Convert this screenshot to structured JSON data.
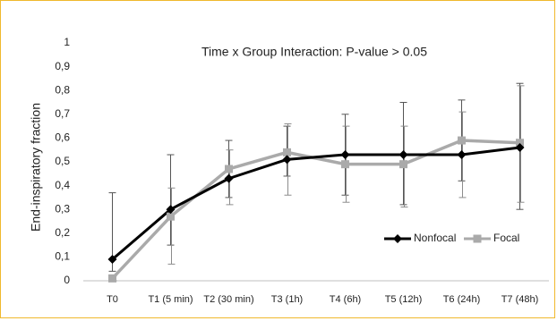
{
  "chart_data": {
    "type": "line",
    "title": "",
    "annotation": "Time x Group Interaction: P-value > 0.05",
    "xlabel": "",
    "ylabel": "End-inspiratory fraction",
    "x": [
      "T0",
      "T1 (5 min)",
      "T2 (30 min)",
      "T3 (1h)",
      "T4 (6h)",
      "T5 (12h)",
      "T6 (24h)",
      "T7 (48h)"
    ],
    "y_ticks": [
      "0",
      "0,1",
      "0,2",
      "0,3",
      "0,4",
      "0,5",
      "0,6",
      "0,7",
      "0,8",
      "0,9",
      "1"
    ],
    "ylim": [
      0,
      1
    ],
    "grid": false,
    "legend_position": "right",
    "series": [
      {
        "name": "Nonfocal",
        "color": "#000000",
        "marker": "diamond",
        "values": [
          0.09,
          0.3,
          0.43,
          0.51,
          0.53,
          0.53,
          0.53,
          0.56
        ],
        "error_low": [
          0.04,
          0.15,
          0.35,
          0.44,
          0.36,
          0.32,
          0.42,
          0.3
        ],
        "error_high": [
          0.37,
          0.53,
          0.59,
          0.65,
          0.7,
          0.75,
          0.76,
          0.83
        ]
      },
      {
        "name": "Focal",
        "color": "#aaaaaa",
        "marker": "square",
        "values": [
          0.01,
          0.27,
          0.47,
          0.54,
          0.49,
          0.49,
          0.59,
          0.58
        ],
        "error_low": [
          0.0,
          0.07,
          0.32,
          0.36,
          0.33,
          0.31,
          0.35,
          0.33
        ],
        "error_high": [
          0.02,
          0.39,
          0.55,
          0.66,
          0.65,
          0.65,
          0.71,
          0.82
        ]
      }
    ]
  }
}
